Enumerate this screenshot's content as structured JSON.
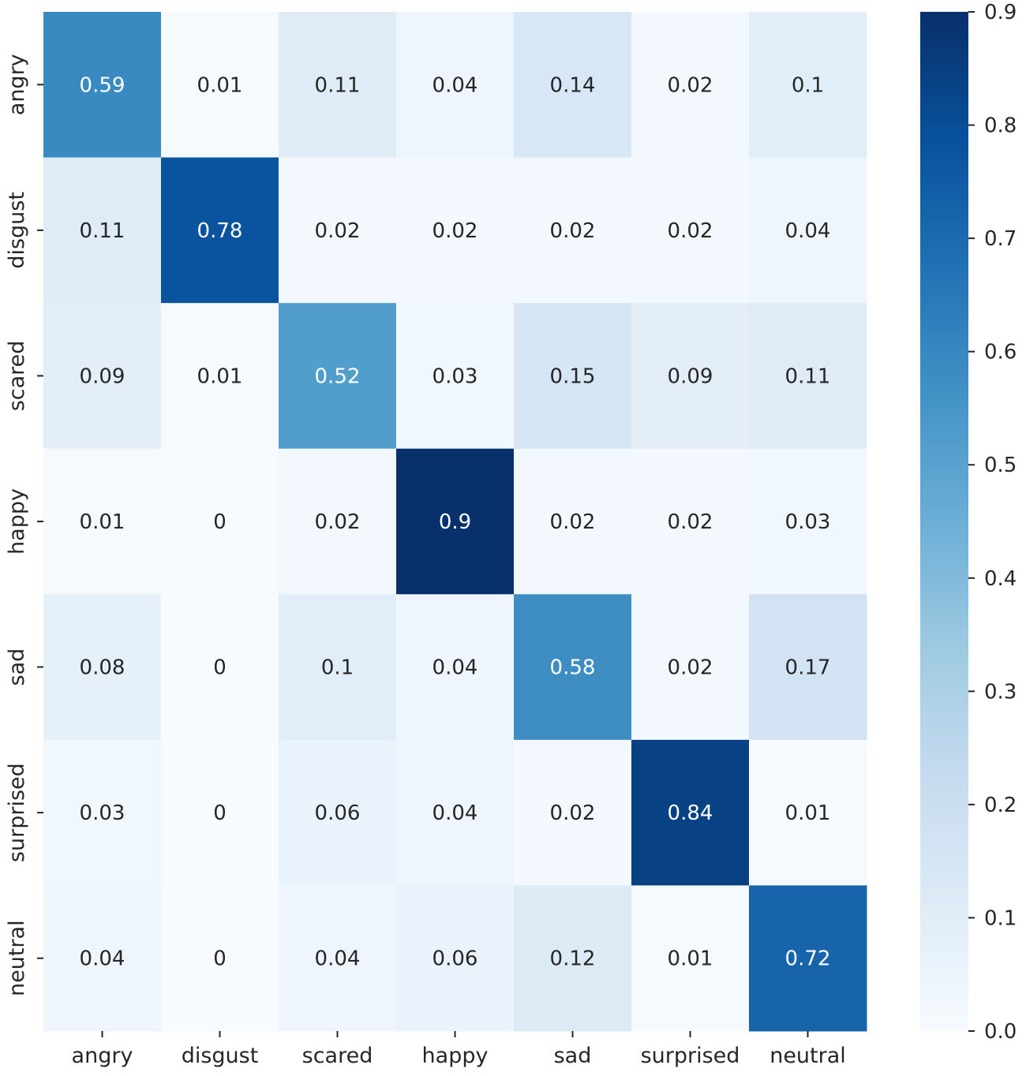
{
  "chart_data": {
    "type": "heatmap",
    "title": "",
    "xlabel": "",
    "ylabel": "",
    "x_categories": [
      "angry",
      "disgust",
      "scared",
      "happy",
      "sad",
      "surprised",
      "neutral"
    ],
    "y_categories": [
      "angry",
      "disgust",
      "scared",
      "happy",
      "sad",
      "surprised",
      "neutral"
    ],
    "values": [
      [
        0.59,
        0.01,
        0.11,
        0.04,
        0.14,
        0.02,
        0.1
      ],
      [
        0.11,
        0.78,
        0.02,
        0.02,
        0.02,
        0.02,
        0.04
      ],
      [
        0.09,
        0.01,
        0.52,
        0.03,
        0.15,
        0.09,
        0.11
      ],
      [
        0.01,
        0,
        0.02,
        0.9,
        0.02,
        0.02,
        0.03
      ],
      [
        0.08,
        0,
        0.1,
        0.04,
        0.58,
        0.02,
        0.17
      ],
      [
        0.03,
        0,
        0.06,
        0.04,
        0.02,
        0.84,
        0.01
      ],
      [
        0.04,
        0,
        0.04,
        0.06,
        0.12,
        0.01,
        0.72
      ]
    ],
    "colorbar": {
      "range": [
        0,
        0.9
      ],
      "ticks": [
        0.0,
        0.1,
        0.2,
        0.3,
        0.4,
        0.5,
        0.6,
        0.7,
        0.8,
        0.9
      ],
      "tick_labels": [
        "0.0",
        "0.1",
        "0.2",
        "0.3",
        "0.4",
        "0.5",
        "0.6",
        "0.7",
        "0.8",
        "0.9"
      ],
      "colormap": "Blues",
      "colormap_stops": [
        "#f7fbff",
        "#deebf7",
        "#c6dbef",
        "#9ecae1",
        "#6baed6",
        "#4292c6",
        "#2171b5",
        "#08519c",
        "#08306b"
      ]
    },
    "text_colors": {
      "dark": "#262626",
      "light": "#ffffff"
    }
  }
}
